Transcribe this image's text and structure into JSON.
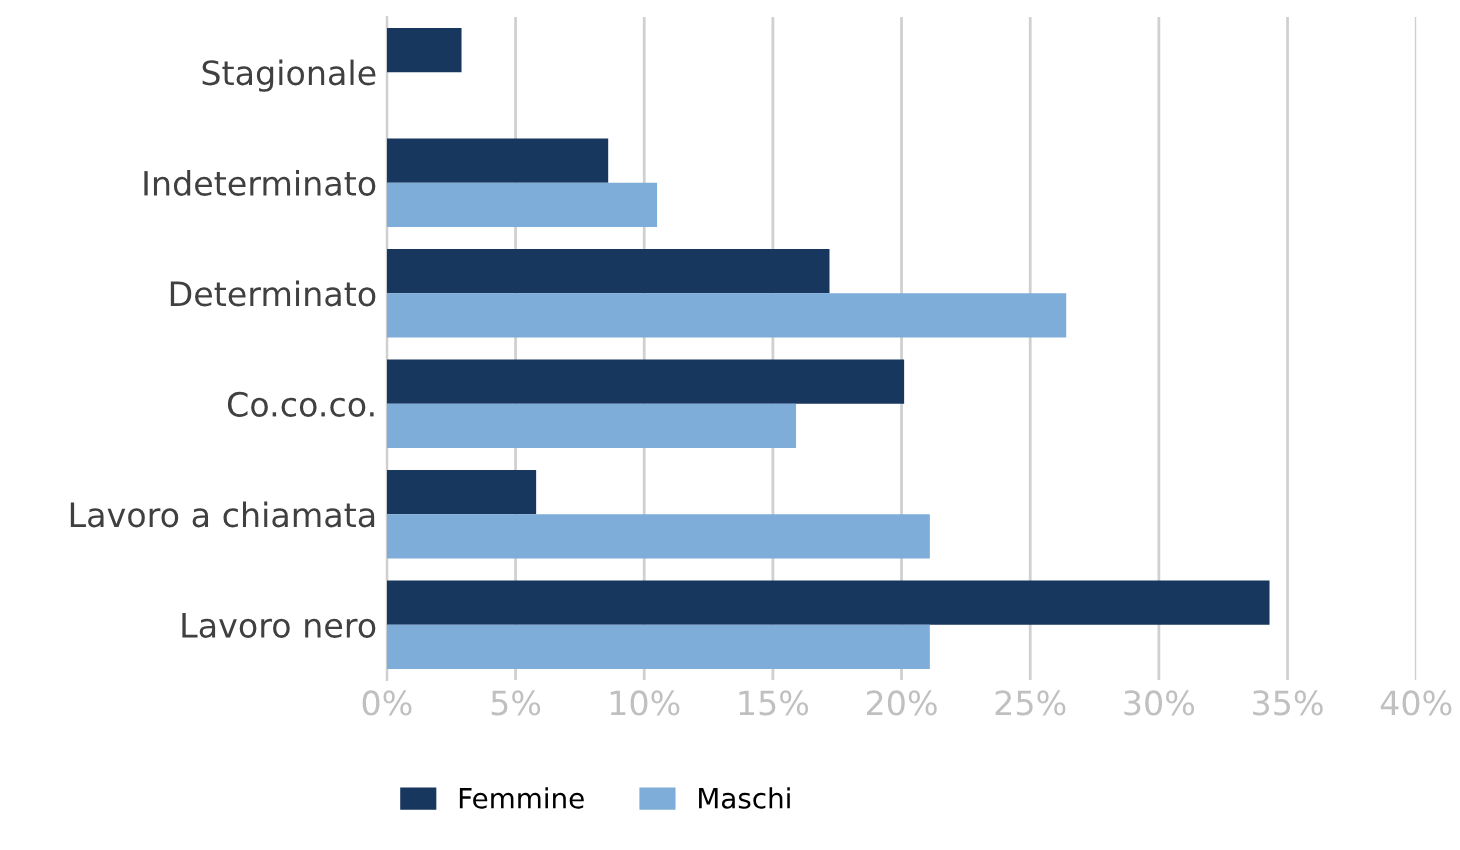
{
  "chart_data": {
    "type": "bar",
    "orientation": "horizontal",
    "categories": [
      "Stagionale",
      "Indeterminato",
      "Determinato",
      "Co.co.co.",
      "Lavoro a chiamata",
      "Lavoro nero"
    ],
    "series": [
      {
        "name": "Femmine",
        "color": "#17375e",
        "values": [
          2.9,
          8.6,
          17.2,
          20.1,
          5.8,
          34.3
        ]
      },
      {
        "name": "Maschi",
        "color": "#7fadd9",
        "values": [
          null,
          10.5,
          26.4,
          15.9,
          21.1,
          21.1
        ]
      }
    ],
    "xlim": [
      0,
      40
    ],
    "xticks": [
      {
        "value": 0,
        "label": "0%"
      },
      {
        "value": 5,
        "label": "5%"
      },
      {
        "value": 10,
        "label": "10%"
      },
      {
        "value": 15,
        "label": "15%"
      },
      {
        "value": 20,
        "label": "20%"
      },
      {
        "value": 25,
        "label": "25%"
      },
      {
        "value": 30,
        "label": "30%"
      },
      {
        "value": 35,
        "label": "35%"
      },
      {
        "value": 40,
        "label": "40%"
      }
    ],
    "grid": "x",
    "legend": "bottom"
  }
}
